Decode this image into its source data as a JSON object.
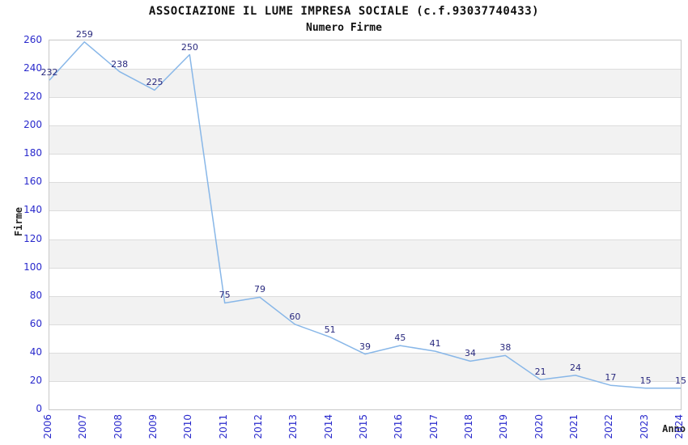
{
  "chart_data": {
    "type": "line",
    "title": "ASSOCIAZIONE IL LUME IMPRESA SOCIALE (c.f.93037740433)",
    "subtitle": "Numero Firme",
    "xlabel": "Anno",
    "ylabel": "Firme",
    "categories": [
      "2006",
      "2007",
      "2008",
      "2009",
      "2010",
      "2011",
      "2012",
      "2013",
      "2014",
      "2015",
      "2016",
      "2017",
      "2018",
      "2019",
      "2020",
      "2021",
      "2022",
      "2023",
      "2024"
    ],
    "series": [
      {
        "name": "Numero Firme",
        "values": [
          232,
          259,
          238,
          225,
          250,
          75,
          79,
          60,
          51,
          39,
          45,
          41,
          34,
          38,
          21,
          24,
          17,
          15,
          15
        ]
      }
    ],
    "ylim": [
      0,
      260
    ],
    "ytick_step": 20,
    "grid": true,
    "legend": "none",
    "data_labels_visible": true,
    "colors": {
      "line": "#88b7e8",
      "axis_tick_label": "#2929cc",
      "data_label": "#29297e",
      "band": "#f2f2f2",
      "gridline": "#dcdcdc",
      "plot_border": "#c8c8c8",
      "title_text": "#111111",
      "axis_title_text": "#222222"
    }
  }
}
